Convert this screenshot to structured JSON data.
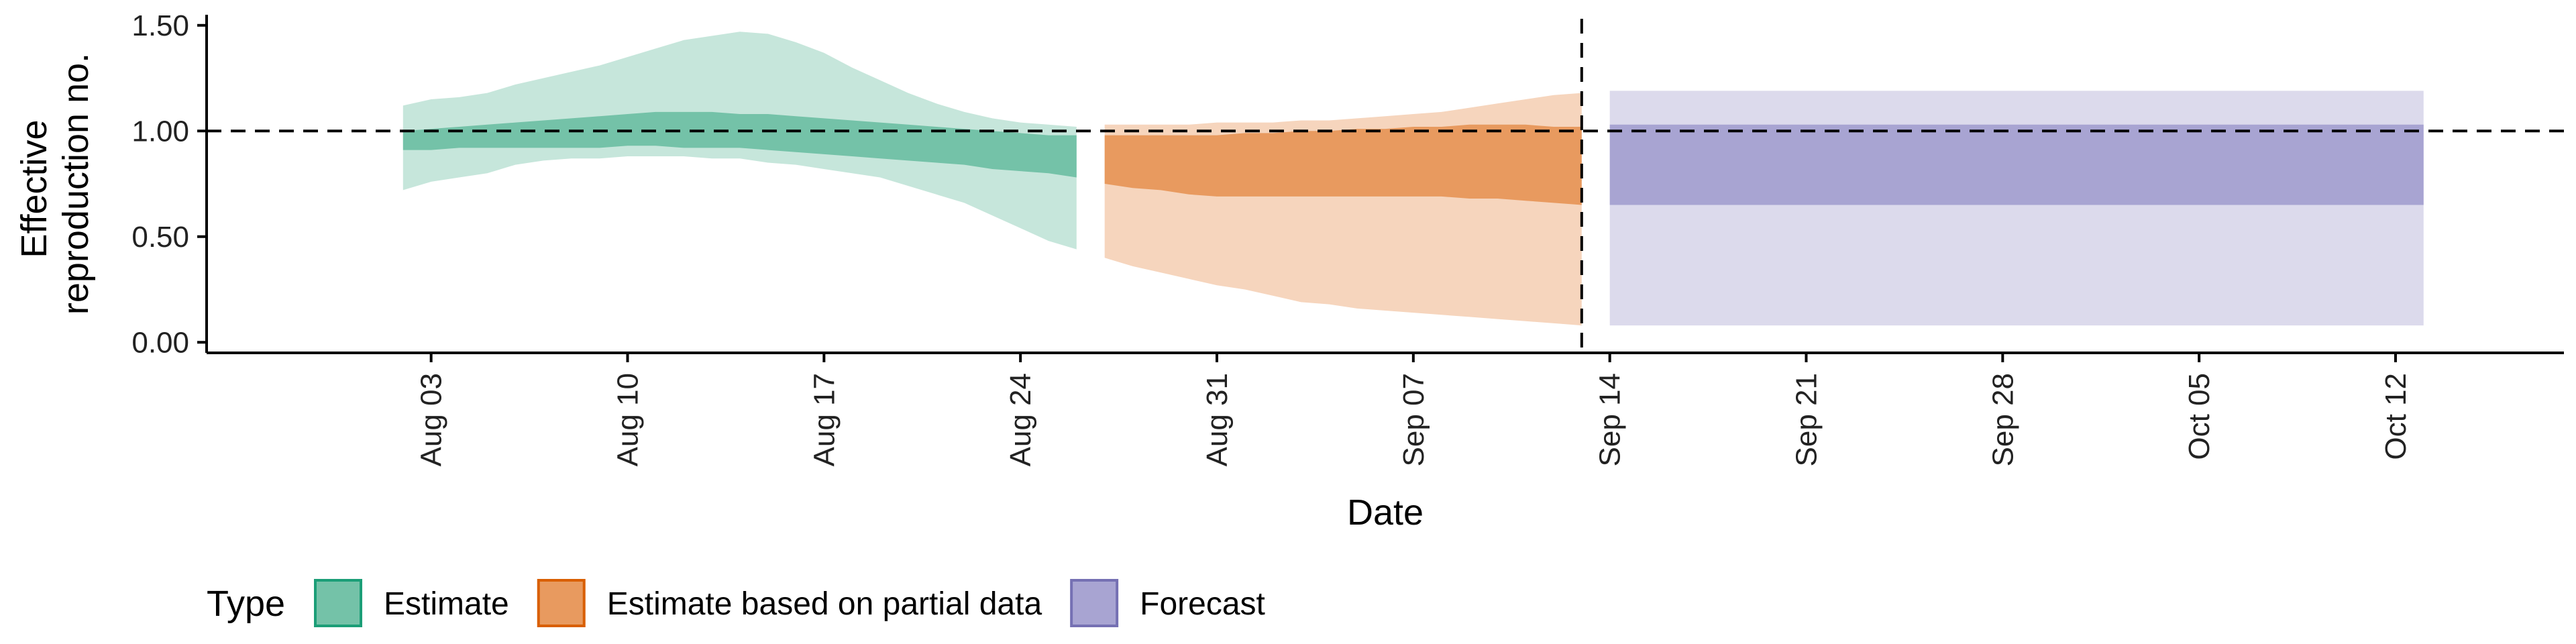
{
  "chart_data": {
    "type": "area",
    "title": "",
    "xlabel": "Date",
    "ylabel_lines": [
      "Effective",
      "reproduction no."
    ],
    "ylim": [
      -0.05,
      1.55
    ],
    "yticks": [
      0,
      0.5,
      1,
      1.5
    ],
    "ytick_labels": [
      "0.00",
      "0.50",
      "1.00",
      "1.50"
    ],
    "xlim": [
      "2025-07-26",
      "2025-10-18"
    ],
    "xticks": [
      "2025-08-03",
      "2025-08-10",
      "2025-08-17",
      "2025-08-24",
      "2025-08-31",
      "2025-09-07",
      "2025-09-14",
      "2025-09-21",
      "2025-09-28",
      "2025-10-05",
      "2025-10-12"
    ],
    "xtick_labels": [
      "Aug 03",
      "Aug 10",
      "Aug 17",
      "Aug 24",
      "Aug 31",
      "Sep 07",
      "Sep 14",
      "Sep 21",
      "Sep 28",
      "Oct 05",
      "Oct 12"
    ],
    "reference_hline": 1.0,
    "reference_vline": "2025-09-13",
    "grid": false,
    "legend": {
      "title": "Type",
      "position": "bottom-left",
      "entries": [
        {
          "label": "Estimate",
          "fill": "#74c2a8",
          "stroke": "#1b9e77"
        },
        {
          "label": "Estimate based on partial data",
          "fill": "#e89a5f",
          "stroke": "#d95f02"
        },
        {
          "label": "Forecast",
          "fill": "#a8a4d2",
          "stroke": "#7570b3"
        }
      ]
    },
    "series": [
      {
        "name": "Estimate",
        "outer_color": "#c6e6db",
        "inner_color": "#74c2a8",
        "x": [
          "2025-08-02",
          "2025-08-03",
          "2025-08-04",
          "2025-08-05",
          "2025-08-06",
          "2025-08-07",
          "2025-08-08",
          "2025-08-09",
          "2025-08-10",
          "2025-08-11",
          "2025-08-12",
          "2025-08-13",
          "2025-08-14",
          "2025-08-15",
          "2025-08-16",
          "2025-08-17",
          "2025-08-18",
          "2025-08-19",
          "2025-08-20",
          "2025-08-21",
          "2025-08-22",
          "2025-08-23",
          "2025-08-24",
          "2025-08-25",
          "2025-08-26"
        ],
        "lower_outer": [
          0.72,
          0.76,
          0.78,
          0.8,
          0.84,
          0.86,
          0.87,
          0.87,
          0.88,
          0.88,
          0.88,
          0.87,
          0.87,
          0.85,
          0.84,
          0.82,
          0.8,
          0.78,
          0.74,
          0.7,
          0.66,
          0.6,
          0.54,
          0.48,
          0.44
        ],
        "lower_inner": [
          0.91,
          0.91,
          0.92,
          0.92,
          0.92,
          0.92,
          0.92,
          0.92,
          0.93,
          0.93,
          0.92,
          0.92,
          0.92,
          0.91,
          0.9,
          0.89,
          0.88,
          0.87,
          0.86,
          0.85,
          0.84,
          0.82,
          0.81,
          0.8,
          0.78
        ],
        "upper_inner": [
          1.0,
          1.01,
          1.02,
          1.03,
          1.04,
          1.05,
          1.06,
          1.07,
          1.08,
          1.09,
          1.09,
          1.09,
          1.08,
          1.08,
          1.07,
          1.06,
          1.05,
          1.04,
          1.03,
          1.02,
          1.01,
          1.0,
          0.99,
          0.98,
          0.98
        ],
        "upper_outer": [
          1.12,
          1.15,
          1.16,
          1.18,
          1.22,
          1.25,
          1.28,
          1.31,
          1.35,
          1.39,
          1.43,
          1.45,
          1.47,
          1.46,
          1.42,
          1.37,
          1.3,
          1.24,
          1.18,
          1.13,
          1.09,
          1.06,
          1.04,
          1.03,
          1.02
        ]
      },
      {
        "name": "Estimate based on partial data",
        "outer_color": "#f6d5bd",
        "inner_color": "#e89a5f",
        "x": [
          "2025-08-27",
          "2025-08-28",
          "2025-08-29",
          "2025-08-30",
          "2025-08-31",
          "2025-09-01",
          "2025-09-02",
          "2025-09-03",
          "2025-09-04",
          "2025-09-05",
          "2025-09-06",
          "2025-09-07",
          "2025-09-08",
          "2025-09-09",
          "2025-09-10",
          "2025-09-11",
          "2025-09-12",
          "2025-09-13"
        ],
        "lower_outer": [
          0.4,
          0.36,
          0.33,
          0.3,
          0.27,
          0.25,
          0.22,
          0.19,
          0.18,
          0.16,
          0.15,
          0.14,
          0.13,
          0.12,
          0.11,
          0.1,
          0.09,
          0.08
        ],
        "lower_inner": [
          0.75,
          0.73,
          0.72,
          0.7,
          0.69,
          0.69,
          0.69,
          0.69,
          0.69,
          0.69,
          0.69,
          0.69,
          0.69,
          0.68,
          0.68,
          0.67,
          0.66,
          0.65
        ],
        "upper_inner": [
          0.98,
          0.98,
          0.98,
          0.98,
          0.98,
          0.99,
          0.99,
          1.0,
          1.0,
          1.01,
          1.01,
          1.02,
          1.02,
          1.03,
          1.03,
          1.03,
          1.02,
          1.02
        ],
        "upper_outer": [
          1.03,
          1.03,
          1.03,
          1.03,
          1.04,
          1.04,
          1.04,
          1.05,
          1.05,
          1.06,
          1.07,
          1.08,
          1.09,
          1.11,
          1.13,
          1.15,
          1.17,
          1.18
        ]
      },
      {
        "name": "Forecast",
        "outer_color": "#dcdaec",
        "inner_color": "#a8a4d2",
        "x": [
          "2025-09-14",
          "2025-10-13"
        ],
        "lower_outer": [
          0.08,
          0.08
        ],
        "lower_inner": [
          0.65,
          0.65
        ],
        "upper_inner": [
          1.03,
          1.03
        ],
        "upper_outer": [
          1.19,
          1.19
        ]
      }
    ]
  }
}
